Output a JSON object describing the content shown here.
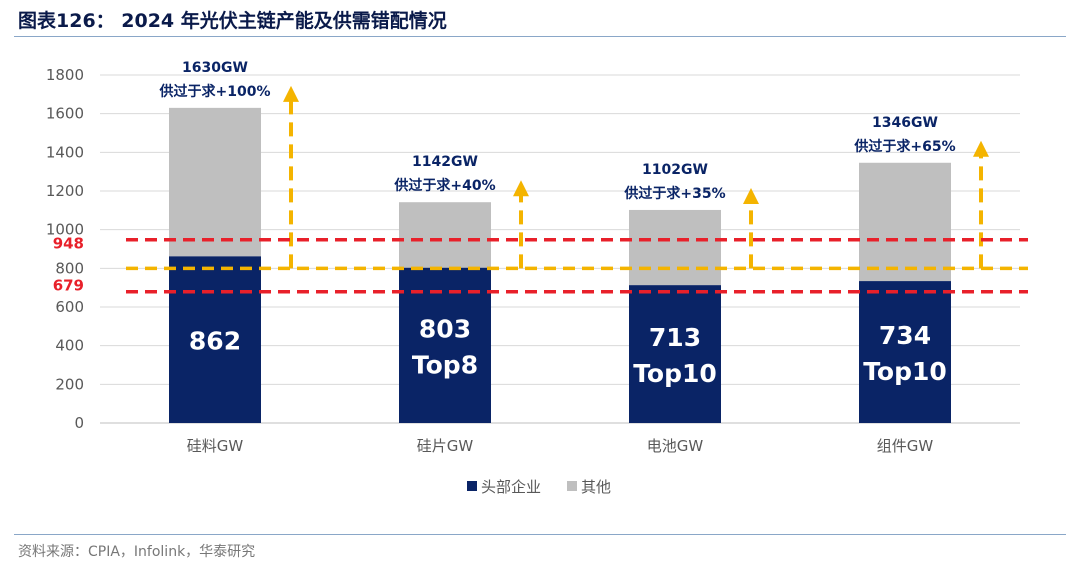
{
  "title": "图表126： 2024 年光伏主链产能及供需错配情况",
  "source": "资料来源：CPIA，Infolink，华泰研究",
  "colors": {
    "head": "#0a2466",
    "other": "#bfbfbf",
    "redline": "#e8202a",
    "yellowline": "#f4b400",
    "annotation": "#0a2466",
    "axis_text": "#595959",
    "grid": "#d9d9d9"
  },
  "chart_data": {
    "type": "bar",
    "stacked": true,
    "categories": [
      "硅料GW",
      "硅片GW",
      "电池GW",
      "组件GW"
    ],
    "series": [
      {
        "name": "头部企业",
        "values": [
          862,
          803,
          713,
          734
        ]
      },
      {
        "name": "其他",
        "values": [
          768,
          339,
          389,
          612
        ]
      }
    ],
    "totals": [
      1630,
      1142,
      1102,
      1346
    ],
    "bar_labels": [
      [
        "862"
      ],
      [
        "803",
        "Top8"
      ],
      [
        "713",
        "Top10"
      ],
      [
        "734",
        "Top10"
      ]
    ],
    "annotations": [
      {
        "total_label": "1630GW",
        "ratio_label": "供过于求+100%"
      },
      {
        "total_label": "1142GW",
        "ratio_label": "供过于求+40%"
      },
      {
        "total_label": "1102GW",
        "ratio_label": "供过于求+35%"
      },
      {
        "total_label": "1346GW",
        "ratio_label": "供过于求+65%"
      }
    ],
    "reference_lines": [
      {
        "value": 948,
        "label": "948",
        "color": "red"
      },
      {
        "value": 800,
        "label": "",
        "color": "yellow"
      },
      {
        "value": 679,
        "label": "679",
        "color": "red"
      }
    ],
    "ylim": [
      0,
      1800
    ],
    "yticks": [
      0,
      200,
      400,
      600,
      800,
      1000,
      1200,
      1400,
      1600,
      1800
    ],
    "grid": true,
    "legend_position": "bottom"
  }
}
